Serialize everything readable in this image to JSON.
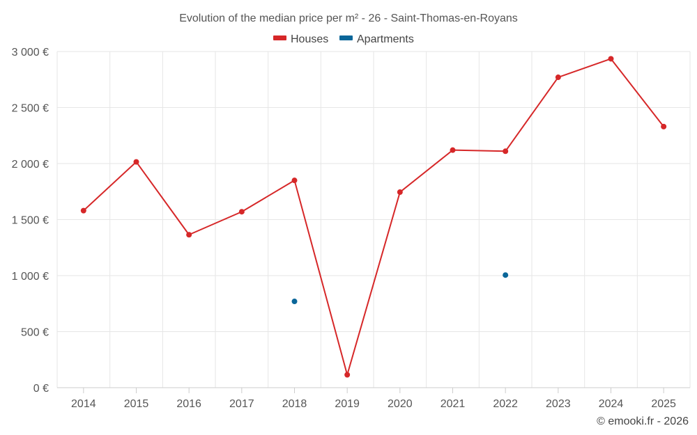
{
  "chart_data": {
    "type": "line",
    "title": "Evolution of the median price per m² - 26 - Saint-Thomas-en-Royans",
    "categories": [
      "2014",
      "2015",
      "2016",
      "2017",
      "2018",
      "2019",
      "2020",
      "2021",
      "2022",
      "2023",
      "2024",
      "2025"
    ],
    "ylim": [
      0,
      3000
    ],
    "yticks": [
      0,
      500,
      1000,
      1500,
      2000,
      2500,
      3000
    ],
    "ytick_labels": [
      "0 €",
      "500 €",
      "1 000 €",
      "1 500 €",
      "2 000 €",
      "2 500 €",
      "3 000 €"
    ],
    "legend_position": "top-center",
    "grid": true,
    "series": [
      {
        "name": "Houses",
        "color": "#d62728",
        "values": [
          1580,
          2015,
          1365,
          1570,
          1850,
          115,
          1745,
          2120,
          2110,
          2770,
          2935,
          2330
        ]
      },
      {
        "name": "Apartments",
        "color": "#0a6699",
        "values": [
          null,
          null,
          null,
          null,
          770,
          null,
          null,
          null,
          1005,
          null,
          null,
          null
        ]
      }
    ],
    "credit": "© emooki.fr - 2026"
  }
}
